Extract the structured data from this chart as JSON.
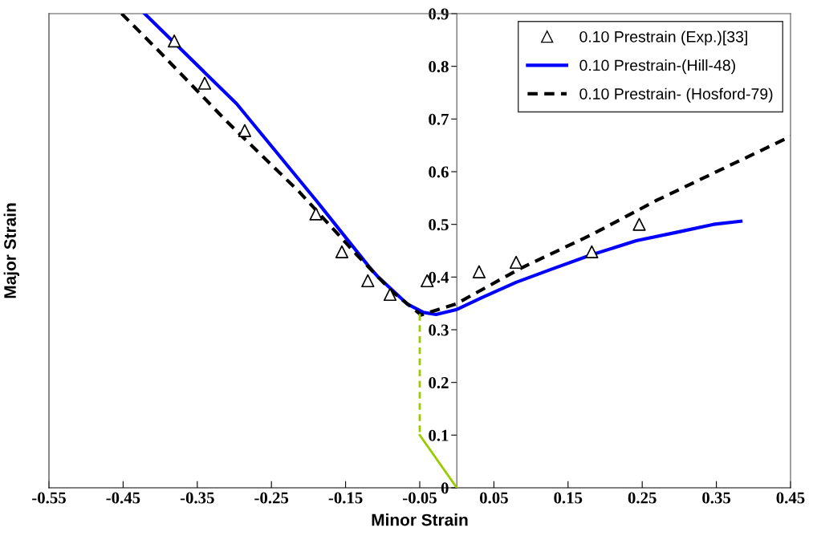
{
  "chart_data": {
    "type": "line",
    "xlabel": "Minor Strain",
    "ylabel": "Major Strain",
    "xlim": [
      -0.55,
      0.45
    ],
    "xticks": [
      -0.55,
      -0.45,
      -0.35,
      -0.25,
      -0.15,
      -0.05,
      0.05,
      0.15,
      0.25,
      0.35,
      0.45
    ],
    "ylim": [
      0,
      0.9
    ],
    "yticks": [
      0,
      0.1,
      0.2,
      0.3,
      0.4,
      0.5,
      0.6,
      0.7,
      0.8,
      0.9
    ],
    "grid": false,
    "legend": "top right",
    "series": [
      {
        "name": "0.10 Prestrain (Exp.)[33]",
        "type": "scatter",
        "marker": "triangle",
        "color": "#000000",
        "x": [
          -0.381,
          -0.34,
          -0.286,
          -0.19,
          -0.155,
          -0.12,
          -0.09,
          -0.04,
          0.03,
          0.08,
          0.182,
          0.246
        ],
        "values": [
          0.848,
          0.768,
          0.678,
          0.52,
          0.448,
          0.393,
          0.367,
          0.393,
          0.41,
          0.428,
          0.448,
          0.5
        ]
      },
      {
        "name": "0.10 Prestrain-(Hill-48)",
        "line_style": "solid",
        "color": "#0000ff",
        "x": [
          -0.421,
          -0.297,
          -0.19,
          -0.118,
          -0.106,
          -0.067,
          -0.045,
          -0.028,
          -0.001,
          0.034,
          0.08,
          0.126,
          0.181,
          0.242,
          0.3,
          0.346,
          0.383
        ],
        "values": [
          0.9,
          0.729,
          0.546,
          0.419,
          0.4,
          0.349,
          0.333,
          0.329,
          0.338,
          0.361,
          0.39,
          0.414,
          0.442,
          0.469,
          0.486,
          0.5,
          0.506
        ]
      },
      {
        "name": "0.10 Prestrain- (Hosford-79)",
        "line_style": "dashed",
        "color": "#000000",
        "x": [
          -0.452,
          -0.399,
          -0.31,
          -0.212,
          -0.136,
          -0.087,
          -0.048,
          -0.001,
          0.088,
          0.181,
          0.27,
          0.45
        ],
        "values": [
          0.9,
          0.825,
          0.695,
          0.561,
          0.444,
          0.372,
          0.328,
          0.349,
          0.418,
          0.48,
          0.546,
          0.667
        ]
      },
      {
        "line_style": "dashed",
        "color": "#99cc00",
        "x": [
          -0.05,
          -0.05
        ],
        "values": [
          0.33,
          0.1
        ]
      },
      {
        "line_style": "solid",
        "color": "#99cc00",
        "x": [
          -0.05,
          0
        ],
        "values": [
          0.1,
          0
        ]
      }
    ]
  }
}
